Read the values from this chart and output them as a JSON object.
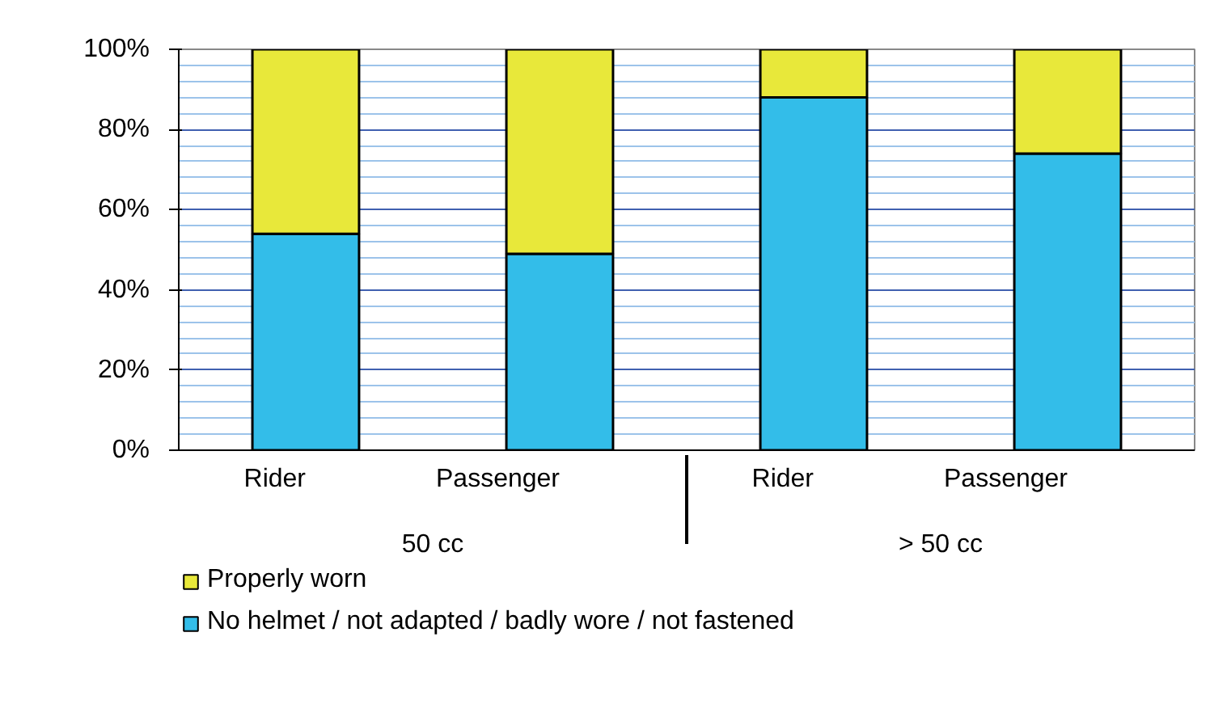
{
  "chart_data": {
    "type": "bar",
    "stacked": true,
    "categories": [
      "Rider",
      "Passenger",
      "Rider",
      "Passenger"
    ],
    "annotations": [
      "50 cc",
      "> 50 cc"
    ],
    "series": [
      {
        "name": "No helmet / not adapted / badly wore / not fastened",
        "color": "#33bde9",
        "values": [
          54,
          49,
          88,
          74
        ]
      },
      {
        "name": "Properly worn",
        "color": "#e8e83a",
        "values": [
          46,
          51,
          12,
          26
        ]
      }
    ],
    "ylim": [
      0,
      100
    ],
    "yticks": [
      {
        "value": 0,
        "label": "0%"
      },
      {
        "value": 4,
        "label": null
      },
      {
        "value": 8,
        "label": null
      },
      {
        "value": 12,
        "label": null
      },
      {
        "value": 16,
        "label": null
      },
      {
        "value": 20,
        "label": "20%"
      },
      {
        "value": 24,
        "label": null
      },
      {
        "value": 28,
        "label": null
      },
      {
        "value": 32,
        "label": null
      },
      {
        "value": 36,
        "label": null
      },
      {
        "value": 40,
        "label": "40%"
      },
      {
        "value": 44,
        "label": null
      },
      {
        "value": 48,
        "label": null
      },
      {
        "value": 52,
        "label": null
      },
      {
        "value": 56,
        "label": null
      },
      {
        "value": 60,
        "label": "60%"
      },
      {
        "value": 64,
        "label": null
      },
      {
        "value": 68,
        "label": null
      },
      {
        "value": 72,
        "label": null
      },
      {
        "value": 76,
        "label": null
      },
      {
        "value": 80,
        "label": "80%"
      },
      {
        "value": 84,
        "label": null
      },
      {
        "value": 88,
        "label": null
      },
      {
        "value": 92,
        "label": null
      },
      {
        "value": 96,
        "label": null
      },
      {
        "value": 100,
        "label": "100%"
      }
    ],
    "grid": "y",
    "legend": "bottom"
  }
}
